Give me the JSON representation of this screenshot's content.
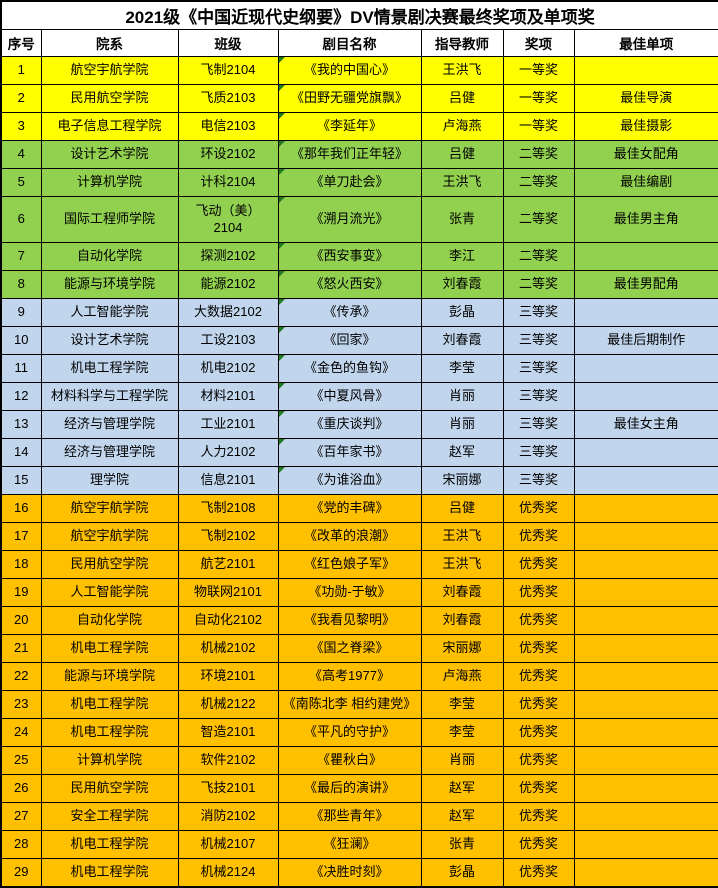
{
  "title": "2021级《中国近现代史纲要》DV情景剧决赛最终奖项及单项奖",
  "columns": [
    "序号",
    "院系",
    "班级",
    "剧目名称",
    "指导教师",
    "奖项",
    "最佳单项"
  ],
  "column_keys": [
    "no",
    "dept",
    "cls",
    "name",
    "teacher",
    "award",
    "single"
  ],
  "colors": {
    "first_prize_bg": "#FFFF00",
    "second_prize_bg": "#92D050",
    "third_prize_bg": "#C1D5EC",
    "excellence_bg": "#FFC000",
    "border": "#000000",
    "error_flag_triangle": "#1E7B1E"
  },
  "rows": [
    {
      "no": "1",
      "dept": "航空宇航学院",
      "cls": "飞制2104",
      "name": "《我的中国心》",
      "teacher": "王洪飞",
      "award": "一等奖",
      "single": "",
      "tier": "first_prize_bg",
      "flag": true,
      "tall": false
    },
    {
      "no": "2",
      "dept": "民用航空学院",
      "cls": "飞质2103",
      "name": "《田野无疆党旗飘》",
      "teacher": "吕健",
      "award": "一等奖",
      "single": "最佳导演",
      "tier": "first_prize_bg",
      "flag": true,
      "tall": false
    },
    {
      "no": "3",
      "dept": "电子信息工程学院",
      "cls": "电信2103",
      "name": "《李延年》",
      "teacher": "卢海燕",
      "award": "一等奖",
      "single": "最佳摄影",
      "tier": "first_prize_bg",
      "flag": true,
      "tall": false
    },
    {
      "no": "4",
      "dept": "设计艺术学院",
      "cls": "环设2102",
      "name": "《那年我们正年轻》",
      "teacher": "吕健",
      "award": "二等奖",
      "single": "最佳女配角",
      "tier": "second_prize_bg",
      "flag": true,
      "tall": false
    },
    {
      "no": "5",
      "dept": "计算机学院",
      "cls": "计科2104",
      "name": "《单刀赴会》",
      "teacher": "王洪飞",
      "award": "二等奖",
      "single": "最佳编剧",
      "tier": "second_prize_bg",
      "flag": true,
      "tall": false
    },
    {
      "no": "6",
      "dept": "国际工程师学院",
      "cls": "飞动（美）\n2104",
      "name": "《溯月流光》",
      "teacher": "张青",
      "award": "二等奖",
      "single": "最佳男主角",
      "tier": "second_prize_bg",
      "flag": true,
      "tall": true
    },
    {
      "no": "7",
      "dept": "自动化学院",
      "cls": "探测2102",
      "name": "《西安事变》",
      "teacher": "李江",
      "award": "二等奖",
      "single": "",
      "tier": "second_prize_bg",
      "flag": true,
      "tall": false
    },
    {
      "no": "8",
      "dept": "能源与环境学院",
      "cls": "能源2102",
      "name": "《怒火西安》",
      "teacher": "刘春霞",
      "award": "二等奖",
      "single": "最佳男配角",
      "tier": "second_prize_bg",
      "flag": true,
      "tall": false
    },
    {
      "no": "9",
      "dept": "人工智能学院",
      "cls": "大数据2102",
      "name": "《传承》",
      "teacher": "彭晶",
      "award": "三等奖",
      "single": "",
      "tier": "third_prize_bg",
      "flag": true,
      "tall": false
    },
    {
      "no": "10",
      "dept": "设计艺术学院",
      "cls": "工设2103",
      "name": "《回家》",
      "teacher": "刘春霞",
      "award": "三等奖",
      "single": "最佳后期制作",
      "tier": "third_prize_bg",
      "flag": true,
      "tall": false
    },
    {
      "no": "11",
      "dept": "机电工程学院",
      "cls": "机电2102",
      "name": "《金色的鱼钩》",
      "teacher": "李莹",
      "award": "三等奖",
      "single": "",
      "tier": "third_prize_bg",
      "flag": true,
      "tall": false
    },
    {
      "no": "12",
      "dept": "材料科学与工程学院",
      "cls": "材料2101",
      "name": "《中夏风骨》",
      "teacher": "肖丽",
      "award": "三等奖",
      "single": "",
      "tier": "third_prize_bg",
      "flag": true,
      "tall": false
    },
    {
      "no": "13",
      "dept": "经济与管理学院",
      "cls": "工业2101",
      "name": "《重庆谈判》",
      "teacher": "肖丽",
      "award": "三等奖",
      "single": "最佳女主角",
      "tier": "third_prize_bg",
      "flag": true,
      "tall": false
    },
    {
      "no": "14",
      "dept": "经济与管理学院",
      "cls": "人力2102",
      "name": "《百年家书》",
      "teacher": "赵军",
      "award": "三等奖",
      "single": "",
      "tier": "third_prize_bg",
      "flag": true,
      "tall": false
    },
    {
      "no": "15",
      "dept": "理学院",
      "cls": "信息2101",
      "name": "《为谁浴血》",
      "teacher": "宋丽娜",
      "award": "三等奖",
      "single": "",
      "tier": "third_prize_bg",
      "flag": true,
      "tall": false
    },
    {
      "no": "16",
      "dept": "航空宇航学院",
      "cls": "飞制2108",
      "name": "《党的丰碑》",
      "teacher": "吕健",
      "award": "优秀奖",
      "single": "",
      "tier": "excellence_bg",
      "flag": false,
      "tall": false
    },
    {
      "no": "17",
      "dept": "航空宇航学院",
      "cls": "飞制2102",
      "name": "《改革的浪潮》",
      "teacher": "王洪飞",
      "award": "优秀奖",
      "single": "",
      "tier": "excellence_bg",
      "flag": false,
      "tall": false
    },
    {
      "no": "18",
      "dept": "民用航空学院",
      "cls": "航艺2101",
      "name": "《红色娘子军》",
      "teacher": "王洪飞",
      "award": "优秀奖",
      "single": "",
      "tier": "excellence_bg",
      "flag": false,
      "tall": false
    },
    {
      "no": "19",
      "dept": "人工智能学院",
      "cls": "物联网2101",
      "name": "《功勋-于敏》",
      "teacher": "刘春霞",
      "award": "优秀奖",
      "single": "",
      "tier": "excellence_bg",
      "flag": false,
      "tall": false
    },
    {
      "no": "20",
      "dept": "自动化学院",
      "cls": "自动化2102",
      "name": "《我看见黎明》",
      "teacher": "刘春霞",
      "award": "优秀奖",
      "single": "",
      "tier": "excellence_bg",
      "flag": false,
      "tall": false
    },
    {
      "no": "21",
      "dept": "机电工程学院",
      "cls": "机械2102",
      "name": "《国之脊梁》",
      "teacher": "宋丽娜",
      "award": "优秀奖",
      "single": "",
      "tier": "excellence_bg",
      "flag": false,
      "tall": false
    },
    {
      "no": "22",
      "dept": "能源与环境学院",
      "cls": "环境2101",
      "name": "《高考1977》",
      "teacher": "卢海燕",
      "award": "优秀奖",
      "single": "",
      "tier": "excellence_bg",
      "flag": false,
      "tall": false
    },
    {
      "no": "23",
      "dept": "机电工程学院",
      "cls": "机械2122",
      "name": "《南陈北李 相约建党》",
      "teacher": "李莹",
      "award": "优秀奖",
      "single": "",
      "tier": "excellence_bg",
      "flag": false,
      "tall": false
    },
    {
      "no": "24",
      "dept": "机电工程学院",
      "cls": "智造2101",
      "name": "《平凡的守护》",
      "teacher": "李莹",
      "award": "优秀奖",
      "single": "",
      "tier": "excellence_bg",
      "flag": false,
      "tall": false
    },
    {
      "no": "25",
      "dept": "计算机学院",
      "cls": "软件2102",
      "name": "《瞿秋白》",
      "teacher": "肖丽",
      "award": "优秀奖",
      "single": "",
      "tier": "excellence_bg",
      "flag": false,
      "tall": false
    },
    {
      "no": "26",
      "dept": "民用航空学院",
      "cls": "飞技2101",
      "name": "《最后的演讲》",
      "teacher": "赵军",
      "award": "优秀奖",
      "single": "",
      "tier": "excellence_bg",
      "flag": false,
      "tall": false
    },
    {
      "no": "27",
      "dept": "安全工程学院",
      "cls": "消防2102",
      "name": "《那些青年》",
      "teacher": "赵军",
      "award": "优秀奖",
      "single": "",
      "tier": "excellence_bg",
      "flag": false,
      "tall": false
    },
    {
      "no": "28",
      "dept": "机电工程学院",
      "cls": "机械2107",
      "name": "《狂澜》",
      "teacher": "张青",
      "award": "优秀奖",
      "single": "",
      "tier": "excellence_bg",
      "flag": false,
      "tall": false
    },
    {
      "no": "29",
      "dept": "机电工程学院",
      "cls": "机械2124",
      "name": "《决胜时刻》",
      "teacher": "彭晶",
      "award": "优秀奖",
      "single": "",
      "tier": "excellence_bg",
      "flag": false,
      "tall": false
    }
  ],
  "chart_data": {
    "type": "table",
    "title": "2021级《中国近现代史纲要》DV情景剧决赛最终奖项及单项奖",
    "award_tiers": [
      {
        "award": "一等奖",
        "row_numbers": [
          1,
          3
        ],
        "row_color": "#FFFF00"
      },
      {
        "award": "二等奖",
        "row_numbers": [
          4,
          8
        ],
        "row_color": "#92D050"
      },
      {
        "award": "三等奖",
        "row_numbers": [
          9,
          15
        ],
        "row_color": "#C1D5EC"
      },
      {
        "award": "优秀奖",
        "row_numbers": [
          16,
          29
        ],
        "row_color": "#FFC000"
      }
    ]
  }
}
